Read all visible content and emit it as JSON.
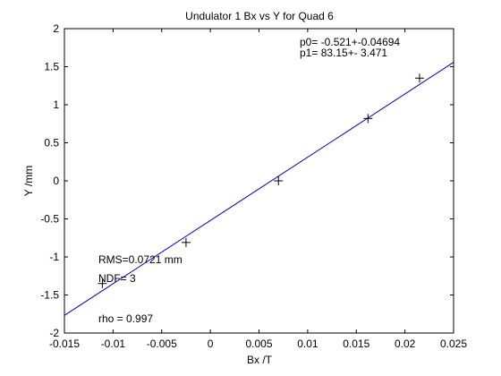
{
  "chart_data": {
    "type": "scatter",
    "title": "Undulator 1 Bx vs Y for Quad 6",
    "xlabel": "Bx /T",
    "ylabel": "Y /mm",
    "xlim": [
      -0.015,
      0.025
    ],
    "ylim": [
      -2,
      2
    ],
    "xticks": [
      -0.015,
      -0.01,
      -0.005,
      0,
      0.005,
      0.01,
      0.015,
      0.02,
      0.025
    ],
    "xtick_labels": [
      "-0.015",
      "-0.01",
      "-0.005",
      "0",
      "0.005",
      "0.01",
      "0.015",
      "0.02",
      "0.025"
    ],
    "yticks": [
      -2,
      -1.5,
      -1,
      -0.5,
      0,
      0.5,
      1,
      1.5,
      2
    ],
    "ytick_labels": [
      "-2",
      "-1.5",
      "-1",
      "-0.5",
      "0",
      "0.5",
      "1",
      "1.5",
      "2"
    ],
    "grid": false,
    "legend": "none",
    "series": [
      {
        "marker": "+",
        "color": "#000000",
        "points": [
          {
            "x": -0.0111,
            "y": -1.35
          },
          {
            "x": -0.0025,
            "y": -0.81
          },
          {
            "x": 0.007,
            "y": 0.0
          },
          {
            "x": 0.0162,
            "y": 0.82
          },
          {
            "x": 0.0215,
            "y": 1.35
          }
        ]
      }
    ],
    "fit_line": {
      "color": "#0000cc",
      "intercept": -0.521,
      "slope": 83.15,
      "x_range": [
        -0.015,
        0.025
      ]
    },
    "annotations": {
      "p0": "p0= -0.521+-0.04694",
      "p1": "p1=  83.15+- 3.471",
      "rms": "RMS=0.0721 mm",
      "ndf": "NDF=    3",
      "rho": "rho    =  0.997"
    }
  }
}
